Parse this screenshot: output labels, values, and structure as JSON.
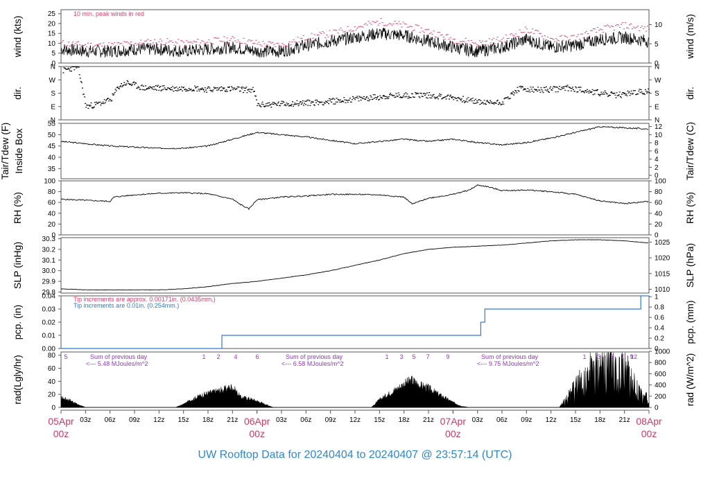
{
  "footer_title": "UW Rooftop Data for 20240404  to  20240407 @ 23:57:14  (UTC)",
  "colors": {
    "peak": "#e0406a",
    "tipBlue": "#2b7bd6",
    "purple": "#9a30d8",
    "date": "#d9365f",
    "title": "#2b88d8",
    "line": "#000000"
  },
  "x_axis": {
    "hour_ticks": [
      "03z",
      "06z",
      "09z",
      "12z",
      "15z",
      "18z",
      "21z",
      "06Apr",
      "03z",
      "06z",
      "09z",
      "12z",
      "15z",
      "18z",
      "21z",
      "07Apr",
      "03z",
      "06z",
      "09z",
      "12z",
      "15z",
      "18z",
      "21z",
      "08Apr"
    ],
    "date_labels": [
      {
        "date": "05Apr",
        "hour": "00z"
      },
      {
        "date": "06Apr",
        "hour": "00z"
      },
      {
        "date": "07Apr",
        "hour": "00z"
      },
      {
        "date": "08Apr",
        "hour": "00z"
      }
    ],
    "range_hours": [
      0,
      72
    ]
  },
  "chart_data": [
    {
      "type": "line",
      "id": "wind",
      "ylabel": "wind (kts)",
      "ylabel_right": "wind (m/s)",
      "yticks": [
        0,
        5,
        10,
        15,
        20,
        25
      ],
      "yticks_right": [
        "0",
        "5",
        "10"
      ],
      "ylim": [
        0,
        27
      ],
      "annotation": "10 min. peak winds in red",
      "series": [
        {
          "x": [
            0,
            3,
            6,
            9,
            12,
            15,
            18,
            21,
            24,
            27,
            30,
            33,
            36,
            39,
            42,
            45,
            48,
            51,
            54,
            57,
            60,
            63,
            66,
            69,
            72
          ],
          "values": [
            7,
            6,
            6,
            7,
            7,
            6,
            7,
            8,
            6,
            6,
            9,
            11,
            13,
            15,
            14,
            11,
            8,
            6,
            8,
            12,
            8,
            9,
            12,
            13,
            11
          ]
        },
        {
          "x": [
            0,
            3,
            6,
            9,
            12,
            15,
            18,
            21,
            24,
            27,
            30,
            33,
            36,
            39,
            42,
            45,
            48,
            51,
            54,
            57,
            60,
            63,
            66,
            69,
            72
          ],
          "values": [
            10,
            9,
            9,
            10,
            11,
            10,
            11,
            12,
            10,
            9,
            13,
            15,
            18,
            21,
            19,
            16,
            12,
            10,
            12,
            17,
            12,
            13,
            17,
            19,
            17
          ]
        }
      ]
    },
    {
      "type": "scatter",
      "id": "dir",
      "ylabel": "dir.",
      "ylabel_right": "dir.",
      "yticks": [
        "N",
        "E",
        "S",
        "W",
        "N"
      ],
      "ylim": [
        0,
        360
      ],
      "series": [
        {
          "x": [
            0,
            2,
            3,
            4,
            6,
            7,
            8,
            10,
            12,
            14,
            16,
            18,
            20,
            22,
            23.5,
            24,
            26,
            28,
            30,
            32,
            34,
            36,
            38,
            40,
            42,
            44,
            46,
            48,
            50,
            52,
            54,
            56,
            58,
            60,
            62,
            64,
            66,
            68,
            70,
            72
          ],
          "values": [
            330,
            360,
            90,
            100,
            135,
            225,
            250,
            215,
            215,
            210,
            215,
            205,
            210,
            205,
            200,
            100,
            105,
            110,
            115,
            120,
            130,
            140,
            150,
            160,
            165,
            170,
            160,
            150,
            130,
            115,
            120,
            210,
            200,
            205,
            215,
            200,
            180,
            165,
            185,
            190
          ]
        }
      ]
    },
    {
      "type": "line",
      "id": "temp",
      "ylabel": "Tair/Tdew (F)",
      "ylabel2": "Inside Box",
      "ylabel_right": "Tair/Tdew (C)",
      "yticks": [
        35,
        40,
        45,
        50,
        55
      ],
      "yticks_right": [
        "0",
        "2",
        "4",
        "6",
        "8",
        "10",
        "12"
      ],
      "ylim": [
        30.5,
        55
      ],
      "series": [
        {
          "x": [
            0,
            3,
            6,
            9,
            12,
            15,
            18,
            21,
            24,
            27,
            30,
            33,
            36,
            39,
            42,
            45,
            48,
            51,
            54,
            57,
            60,
            63,
            66,
            69,
            72
          ],
          "values": [
            47,
            46,
            45,
            44.5,
            44,
            44,
            45,
            48,
            51,
            50,
            49,
            47.5,
            46,
            47,
            48,
            47,
            48,
            46.5,
            45.5,
            46.5,
            48.5,
            51,
            53.5,
            53,
            52.5
          ]
        }
      ]
    },
    {
      "type": "line",
      "id": "rh",
      "ylabel": "RH (%)",
      "ylabel_right": "RH (%)",
      "yticks": [
        0,
        20,
        40,
        60,
        80,
        100
      ],
      "ylim": [
        0,
        100
      ],
      "series": [
        {
          "x": [
            0,
            3,
            6,
            6.5,
            9,
            12,
            15,
            18,
            21,
            22,
            23,
            24,
            27,
            30,
            33,
            36,
            39,
            42,
            43,
            45,
            48,
            50,
            51,
            52,
            54,
            57,
            60,
            63,
            66,
            69,
            72
          ],
          "values": [
            66,
            64,
            62,
            70,
            74,
            77,
            78,
            76,
            66,
            56,
            48,
            65,
            70,
            72,
            75,
            75,
            74,
            70,
            57,
            68,
            75,
            83,
            92,
            90,
            82,
            83,
            80,
            75,
            63,
            58,
            62
          ]
        }
      ]
    },
    {
      "type": "line",
      "id": "slp",
      "ylabel": "SLP (inHg)",
      "ylabel_right": "SLP (hPa)",
      "yticks": [
        "29.8",
        "29.9",
        "30.0",
        "30.1",
        "30.2",
        "30.3"
      ],
      "yticks_right": [
        "1010",
        "1015",
        "1020",
        "1025"
      ],
      "ylim": [
        29.79,
        30.31
      ],
      "series": [
        {
          "x": [
            0,
            3,
            6,
            9,
            12,
            15,
            18,
            21,
            24,
            27,
            30,
            33,
            36,
            39,
            42,
            45,
            48,
            51,
            54,
            57,
            60,
            63,
            66,
            69,
            72
          ],
          "values": [
            29.83,
            29.82,
            29.82,
            29.82,
            29.82,
            29.83,
            29.85,
            29.88,
            29.9,
            29.93,
            29.96,
            30.0,
            30.05,
            30.1,
            30.16,
            30.2,
            30.22,
            30.23,
            30.24,
            30.26,
            30.28,
            30.29,
            30.29,
            30.28,
            30.26
          ]
        }
      ]
    },
    {
      "type": "line",
      "id": "pcp",
      "ylabel": "pcp. (in)",
      "ylabel_right": "pcp. (mm)",
      "yticks": [
        "0.00",
        "0.01",
        "0.02",
        "0.03",
        "0.04"
      ],
      "yticks_right": [
        "0",
        "0.2",
        "0.4",
        "0.6",
        "0.8",
        "1"
      ],
      "ylim": [
        0,
        0.04
      ],
      "annotations": [
        "Tip increments are approx. 0.00171in. (0.0435mm.)",
        "Tip increments are 0.01in. (0.254mm.)"
      ],
      "series": [
        {
          "x": [
            0,
            19.7,
            19.7,
            51.4,
            51.4,
            51.9,
            51.9,
            71,
            71,
            72
          ],
          "values": [
            0,
            0,
            0.01,
            0.01,
            0.02,
            0.02,
            0.03,
            0.03,
            0.04,
            0.04
          ]
        }
      ]
    },
    {
      "type": "area",
      "id": "rad",
      "ylabel": "rad(Lgly/hr)",
      "ylabel_right": "rad (W/m^2)",
      "yticks": [
        0,
        20,
        40,
        60,
        80
      ],
      "yticks_right": [
        "0",
        "200",
        "400",
        "600",
        "800",
        "1000"
      ],
      "ylim": [
        0,
        85
      ],
      "day_notes": [
        {
          "title": "Sum of previous day",
          "total": "<--- 5.48 MJoules/m^2"
        },
        {
          "title": "Sum of previous day",
          "total": "<--- 6.58 MJoules/m^2"
        },
        {
          "title": "Sum of previous day",
          "total": "<--- 9.75 MJoules/m^2"
        }
      ],
      "hour_marks": [
        "5",
        "1",
        "2",
        "4",
        "6",
        "1",
        "3",
        "5",
        "7",
        "9",
        "1",
        "3",
        "5",
        "7",
        "9",
        "12"
      ],
      "series": [
        {
          "x": [
            0,
            1,
            2,
            3,
            14,
            15,
            16,
            17,
            18,
            19,
            20,
            21,
            22,
            23,
            24,
            26,
            38,
            39,
            40,
            41,
            42,
            43,
            44,
            45,
            46,
            47,
            48,
            49,
            50,
            61,
            62,
            63,
            64,
            65,
            66,
            67,
            68,
            69,
            70,
            71,
            72
          ],
          "values": [
            15,
            12,
            5,
            0,
            0,
            5,
            12,
            18,
            22,
            25,
            28,
            32,
            16,
            14,
            10,
            0,
            0,
            12,
            20,
            28,
            36,
            42,
            34,
            30,
            22,
            15,
            8,
            2,
            0,
            0,
            18,
            40,
            60,
            75,
            70,
            85,
            65,
            75,
            55,
            25,
            18
          ]
        }
      ]
    }
  ]
}
